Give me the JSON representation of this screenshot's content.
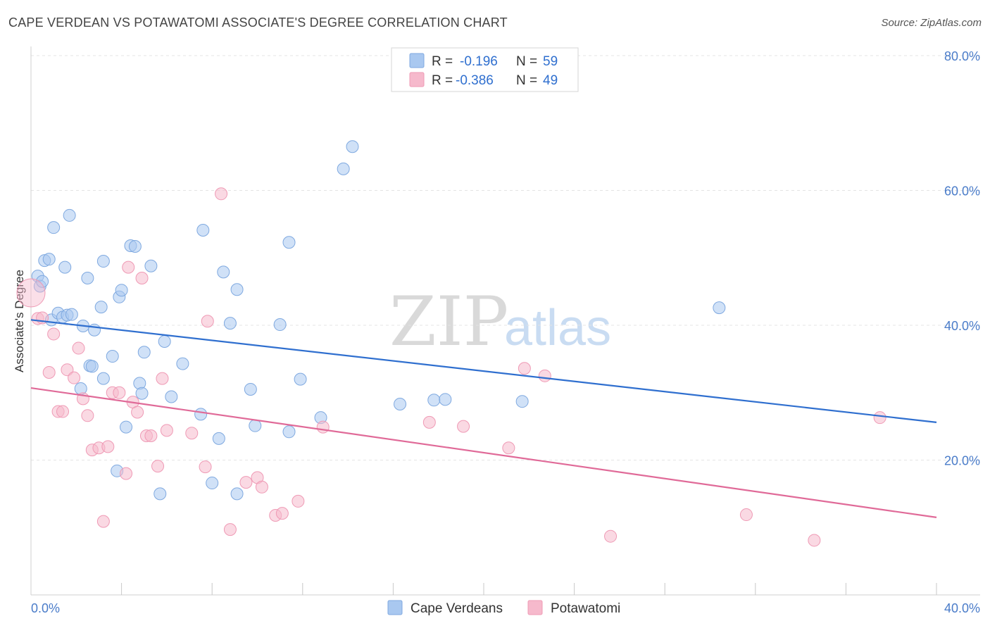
{
  "header": {
    "title": "CAPE VERDEAN VS POTAWATOMI ASSOCIATE'S DEGREE CORRELATION CHART",
    "source": "Source: ZipAtlas.com"
  },
  "watermark": {
    "zip": "ZIP",
    "atlas": "atlas"
  },
  "legend_top": {
    "r_label": "R =",
    "n_label": "N =",
    "rows": [
      {
        "r": "-0.196",
        "n": "59",
        "color": "#a9c8f0"
      },
      {
        "r": "-0.386",
        "n": "49",
        "color": "#f6b9cc"
      }
    ]
  },
  "legend_bottom": [
    {
      "label": "Cape Verdeans",
      "color": "#a9c8f0"
    },
    {
      "label": "Potawatomi",
      "color": "#f6b9cc"
    }
  ],
  "chart_data": {
    "type": "scatter",
    "title": "CAPE VERDEAN VS POTAWATOMI ASSOCIATE'S DEGREE CORRELATION CHART",
    "xlabel": "",
    "ylabel": "Associate's Degree",
    "xlim": [
      0,
      40
    ],
    "ylim": [
      0,
      80
    ],
    "x_tick_labels": [
      "0.0%",
      "40.0%"
    ],
    "y_ticks": [
      20,
      40,
      60,
      80
    ],
    "y_tick_labels": [
      "20.0%",
      "40.0%",
      "60.0%",
      "80.0%"
    ],
    "grid": true,
    "legend_position": "bottom",
    "colors": {
      "cape_verdeans_fill": "#a9c8f0",
      "cape_verdeans_line": "#2f6fcf",
      "potawatomi_fill": "#f6b9cc",
      "potawatomi_line": "#e06a98"
    },
    "series": [
      {
        "name": "Cape Verdeans",
        "color": "#a9c8f0",
        "trend": {
          "x": [
            0,
            40
          ],
          "y": [
            40.8,
            25.6
          ]
        },
        "points": [
          [
            0.3,
            47.3
          ],
          [
            0.4,
            45.8
          ],
          [
            0.5,
            46.5
          ],
          [
            0.6,
            49.6
          ],
          [
            0.8,
            49.8
          ],
          [
            0.9,
            40.8
          ],
          [
            1.0,
            54.5
          ],
          [
            1.2,
            41.8
          ],
          [
            1.4,
            41.2
          ],
          [
            1.5,
            48.6
          ],
          [
            1.6,
            41.5
          ],
          [
            1.7,
            56.3
          ],
          [
            1.8,
            41.6
          ],
          [
            2.2,
            30.6
          ],
          [
            2.3,
            39.9
          ],
          [
            2.5,
            47.0
          ],
          [
            2.6,
            34.0
          ],
          [
            2.7,
            33.9
          ],
          [
            2.8,
            39.3
          ],
          [
            3.1,
            42.7
          ],
          [
            3.2,
            32.1
          ],
          [
            3.2,
            49.5
          ],
          [
            3.6,
            35.4
          ],
          [
            3.8,
            18.4
          ],
          [
            3.9,
            44.2
          ],
          [
            4.0,
            45.2
          ],
          [
            4.2,
            24.9
          ],
          [
            4.4,
            51.8
          ],
          [
            4.6,
            51.7
          ],
          [
            4.8,
            31.4
          ],
          [
            4.9,
            29.9
          ],
          [
            5.0,
            36.0
          ],
          [
            5.3,
            48.8
          ],
          [
            5.7,
            15.0
          ],
          [
            5.9,
            37.6
          ],
          [
            6.2,
            29.4
          ],
          [
            6.7,
            34.3
          ],
          [
            7.5,
            26.8
          ],
          [
            7.6,
            54.1
          ],
          [
            8.0,
            16.6
          ],
          [
            8.3,
            23.2
          ],
          [
            8.5,
            47.9
          ],
          [
            8.8,
            40.3
          ],
          [
            9.1,
            15.0
          ],
          [
            9.1,
            45.3
          ],
          [
            9.7,
            30.5
          ],
          [
            9.9,
            25.1
          ],
          [
            11.0,
            40.1
          ],
          [
            11.4,
            24.2
          ],
          [
            11.4,
            52.3
          ],
          [
            11.9,
            32.0
          ],
          [
            12.8,
            26.3
          ],
          [
            13.8,
            63.2
          ],
          [
            14.2,
            66.5
          ],
          [
            16.3,
            28.3
          ],
          [
            17.8,
            28.9
          ],
          [
            18.3,
            29.0
          ],
          [
            21.7,
            28.7
          ],
          [
            30.4,
            42.6
          ]
        ]
      },
      {
        "name": "Potawatomi",
        "color": "#f6b9cc",
        "trend": {
          "x": [
            0,
            40
          ],
          "y": [
            30.7,
            11.5
          ]
        },
        "points": [
          [
            0.0,
            44.8
          ],
          [
            0.3,
            41.0
          ],
          [
            0.5,
            41.1
          ],
          [
            0.8,
            33.0
          ],
          [
            1.0,
            38.7
          ],
          [
            1.2,
            27.2
          ],
          [
            1.4,
            27.2
          ],
          [
            1.6,
            33.4
          ],
          [
            1.9,
            32.2
          ],
          [
            2.1,
            36.6
          ],
          [
            2.3,
            29.1
          ],
          [
            2.5,
            26.6
          ],
          [
            2.7,
            21.5
          ],
          [
            3.0,
            21.8
          ],
          [
            3.2,
            10.9
          ],
          [
            3.4,
            22.0
          ],
          [
            3.6,
            30.0
          ],
          [
            3.9,
            30.0
          ],
          [
            4.2,
            18.0
          ],
          [
            4.3,
            48.6
          ],
          [
            4.5,
            28.6
          ],
          [
            4.7,
            27.1
          ],
          [
            4.9,
            47.0
          ],
          [
            5.1,
            23.6
          ],
          [
            5.3,
            23.6
          ],
          [
            5.6,
            19.1
          ],
          [
            5.8,
            32.1
          ],
          [
            6.0,
            24.4
          ],
          [
            7.1,
            24.0
          ],
          [
            7.7,
            19.0
          ],
          [
            7.8,
            40.6
          ],
          [
            8.4,
            59.5
          ],
          [
            8.8,
            9.7
          ],
          [
            9.5,
            16.7
          ],
          [
            10.0,
            17.4
          ],
          [
            10.2,
            16.0
          ],
          [
            10.8,
            11.8
          ],
          [
            11.1,
            12.1
          ],
          [
            11.8,
            13.9
          ],
          [
            12.9,
            24.9
          ],
          [
            17.6,
            25.6
          ],
          [
            19.1,
            25.0
          ],
          [
            21.1,
            21.8
          ],
          [
            21.8,
            33.6
          ],
          [
            22.7,
            32.5
          ],
          [
            25.6,
            8.7
          ],
          [
            31.6,
            11.9
          ],
          [
            34.6,
            8.1
          ],
          [
            37.5,
            26.3
          ]
        ]
      }
    ]
  }
}
